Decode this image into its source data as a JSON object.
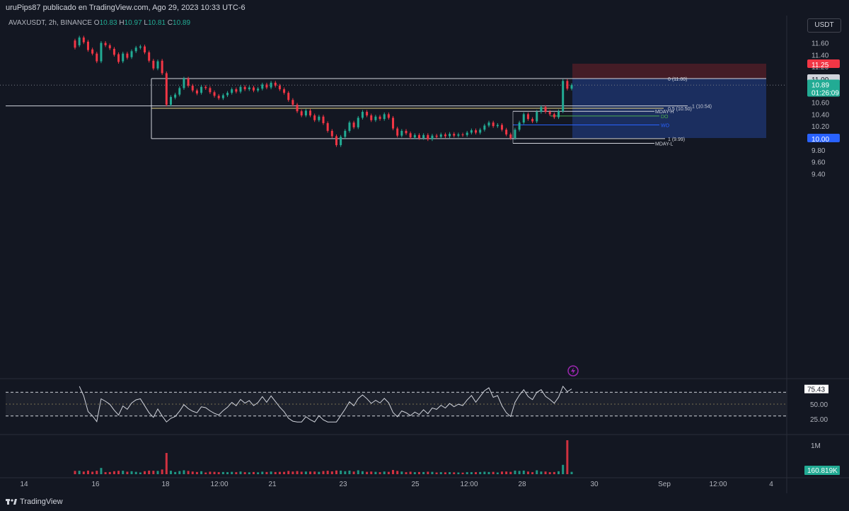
{
  "header": {
    "publisher": "uruPips87 publicado en TradingView.com, Ago 29, 2023 10:33 UTC-6"
  },
  "legend": {
    "symbol": "AVAXUSDT, 2h, BINANCE",
    "o_label": "O",
    "o": "10.83",
    "h_label": "H",
    "h": "10.97",
    "l_label": "L",
    "l": "10.81",
    "c_label": "C",
    "c": "10.89"
  },
  "currency_button": "USDT",
  "price_axis": {
    "ticks": [
      "11.60",
      "11.40",
      "11.20",
      "10.80",
      "10.60",
      "10.40",
      "10.20",
      "9.80",
      "9.60",
      "9.40"
    ]
  },
  "price_tags": {
    "stop": "11.25",
    "level": "11.00",
    "last": "10.89",
    "countdown": "01:26:09",
    "target": "10.00"
  },
  "fib_labels": {
    "f0": "0 (11.00)",
    "f1": "1 (10.54)",
    "f05": "0.5 (10.50)",
    "f1b": "1 (9.99)"
  },
  "level_labels": {
    "mdayh": "MDAY-H",
    "do": "DO",
    "wo": "WO",
    "mdayl": "MDAY-L"
  },
  "rsi": {
    "value": "75.43",
    "ticks": [
      "50.00",
      "25.00"
    ]
  },
  "volume": {
    "axis": "1M",
    "value": "160.819K"
  },
  "time_axis": [
    "14",
    "16",
    "18",
    "12:00",
    "21",
    "23",
    "25",
    "12:00",
    "28",
    "30",
    "Sep",
    "12:00",
    "4"
  ],
  "footer": {
    "brand": "TradingView"
  },
  "colors": {
    "up": "#22ab94",
    "down": "#f23645",
    "bg": "#131722",
    "short_target": "#1d3166",
    "short_stop": "#4a1d27"
  },
  "chart_data": {
    "type": "candlestick",
    "symbol": "AVAXUSDT",
    "interval": "2h",
    "ylim": [
      9.4,
      11.7
    ],
    "candles": [
      {
        "o": 11.64,
        "c": 11.52
      },
      {
        "o": 11.56,
        "c": 11.69
      },
      {
        "o": 11.69,
        "c": 11.61
      },
      {
        "o": 11.62,
        "c": 11.48
      },
      {
        "o": 11.49,
        "c": 11.42
      },
      {
        "o": 11.42,
        "c": 11.29
      },
      {
        "o": 11.29,
        "c": 11.6
      },
      {
        "o": 11.6,
        "c": 11.56
      },
      {
        "o": 11.56,
        "c": 11.51
      },
      {
        "o": 11.5,
        "c": 11.4
      },
      {
        "o": 11.41,
        "c": 11.28
      },
      {
        "o": 11.29,
        "c": 11.42
      },
      {
        "o": 11.42,
        "c": 11.35
      },
      {
        "o": 11.36,
        "c": 11.46
      },
      {
        "o": 11.46,
        "c": 11.52
      },
      {
        "o": 11.52,
        "c": 11.54
      },
      {
        "o": 11.54,
        "c": 11.44
      },
      {
        "o": 11.44,
        "c": 11.3
      },
      {
        "o": 11.3,
        "c": 11.17
      },
      {
        "o": 11.17,
        "c": 11.29
      },
      {
        "o": 11.3,
        "c": 11.09
      },
      {
        "o": 11.09,
        "c": 10.56
      },
      {
        "o": 10.56,
        "c": 10.69
      },
      {
        "o": 10.68,
        "c": 10.73
      },
      {
        "o": 10.73,
        "c": 10.84
      },
      {
        "o": 10.84,
        "c": 11.0
      },
      {
        "o": 11.0,
        "c": 10.88
      },
      {
        "o": 10.88,
        "c": 10.8
      },
      {
        "o": 10.8,
        "c": 10.75
      },
      {
        "o": 10.76,
        "c": 10.86
      },
      {
        "o": 10.86,
        "c": 10.84
      },
      {
        "o": 10.84,
        "c": 10.77
      },
      {
        "o": 10.77,
        "c": 10.71
      },
      {
        "o": 10.71,
        "c": 10.67
      },
      {
        "o": 10.67,
        "c": 10.72
      },
      {
        "o": 10.72,
        "c": 10.76
      },
      {
        "o": 10.76,
        "c": 10.82
      },
      {
        "o": 10.82,
        "c": 10.78
      },
      {
        "o": 10.78,
        "c": 10.86
      },
      {
        "o": 10.86,
        "c": 10.82
      },
      {
        "o": 10.82,
        "c": 10.85
      },
      {
        "o": 10.85,
        "c": 10.8
      },
      {
        "o": 10.8,
        "c": 10.83
      },
      {
        "o": 10.83,
        "c": 10.9
      },
      {
        "o": 10.9,
        "c": 10.85
      },
      {
        "o": 10.85,
        "c": 10.93
      },
      {
        "o": 10.93,
        "c": 10.88
      },
      {
        "o": 10.88,
        "c": 10.82
      },
      {
        "o": 10.82,
        "c": 10.76
      },
      {
        "o": 10.76,
        "c": 10.64
      },
      {
        "o": 10.64,
        "c": 10.56
      },
      {
        "o": 10.56,
        "c": 10.45
      },
      {
        "o": 10.45,
        "c": 10.38
      },
      {
        "o": 10.38,
        "c": 10.46
      },
      {
        "o": 10.46,
        "c": 10.38
      },
      {
        "o": 10.38,
        "c": 10.3
      },
      {
        "o": 10.3,
        "c": 10.36
      },
      {
        "o": 10.36,
        "c": 10.25
      },
      {
        "o": 10.25,
        "c": 10.12
      },
      {
        "o": 10.12,
        "c": 10.03
      },
      {
        "o": 10.03,
        "c": 9.88
      },
      {
        "o": 9.88,
        "c": 10.02
      },
      {
        "o": 10.02,
        "c": 10.12
      },
      {
        "o": 10.12,
        "c": 10.26
      },
      {
        "o": 10.26,
        "c": 10.18
      },
      {
        "o": 10.18,
        "c": 10.34
      },
      {
        "o": 10.34,
        "c": 10.44
      },
      {
        "o": 10.44,
        "c": 10.38
      },
      {
        "o": 10.38,
        "c": 10.3
      },
      {
        "o": 10.3,
        "c": 10.36
      },
      {
        "o": 10.36,
        "c": 10.32
      },
      {
        "o": 10.32,
        "c": 10.4
      },
      {
        "o": 10.4,
        "c": 10.34
      },
      {
        "o": 10.34,
        "c": 10.16
      },
      {
        "o": 10.16,
        "c": 10.04
      },
      {
        "o": 10.04,
        "c": 10.12
      },
      {
        "o": 10.12,
        "c": 10.08
      },
      {
        "o": 10.08,
        "c": 10.01
      },
      {
        "o": 10.01,
        "c": 10.05
      },
      {
        "o": 10.05,
        "c": 10.0
      },
      {
        "o": 10.0,
        "c": 10.05
      },
      {
        "o": 10.05,
        "c": 9.98
      },
      {
        "o": 9.98,
        "c": 10.04
      },
      {
        "o": 10.04,
        "c": 10.02
      },
      {
        "o": 10.02,
        "c": 10.06
      },
      {
        "o": 10.06,
        "c": 10.03
      },
      {
        "o": 10.03,
        "c": 10.07
      },
      {
        "o": 10.07,
        "c": 10.04
      },
      {
        "o": 10.04,
        "c": 10.06
      },
      {
        "o": 10.06,
        "c": 10.05
      },
      {
        "o": 10.05,
        "c": 10.09
      },
      {
        "o": 10.09,
        "c": 10.13
      },
      {
        "o": 10.13,
        "c": 10.09
      },
      {
        "o": 10.09,
        "c": 10.14
      },
      {
        "o": 10.14,
        "c": 10.21
      },
      {
        "o": 10.21,
        "c": 10.26
      },
      {
        "o": 10.26,
        "c": 10.2
      },
      {
        "o": 10.2,
        "c": 10.22
      },
      {
        "o": 10.22,
        "c": 10.14
      },
      {
        "o": 10.14,
        "c": 10.06
      },
      {
        "o": 10.06,
        "c": 10.0
      },
      {
        "o": 10.0,
        "c": 10.14
      },
      {
        "o": 10.14,
        "c": 10.26
      },
      {
        "o": 10.26,
        "c": 10.4
      },
      {
        "o": 10.4,
        "c": 10.32
      },
      {
        "o": 10.32,
        "c": 10.28
      },
      {
        "o": 10.28,
        "c": 10.44
      },
      {
        "o": 10.44,
        "c": 10.52
      },
      {
        "o": 10.52,
        "c": 10.44
      },
      {
        "o": 10.44,
        "c": 10.4
      },
      {
        "o": 10.4,
        "c": 10.35
      },
      {
        "o": 10.35,
        "c": 10.45
      },
      {
        "o": 10.45,
        "c": 10.96
      },
      {
        "o": 10.96,
        "c": 10.83
      },
      {
        "o": 10.83,
        "c": 10.89
      }
    ],
    "hlines": [
      {
        "label": "0 (11.00)",
        "price": 11.0
      },
      {
        "label": "1 (10.54)",
        "price": 10.54
      },
      {
        "label": "0.5 (10.50)",
        "price": 10.5
      },
      {
        "label": "MDAY-H",
        "price": 10.45
      },
      {
        "label": "DO",
        "price": 10.37
      },
      {
        "label": "WO",
        "price": 10.22
      },
      {
        "label": "1 (9.99)",
        "price": 9.99
      },
      {
        "label": "MDAY-L",
        "price": 9.91
      }
    ],
    "position": {
      "type": "short",
      "entry": 11.0,
      "stop": 11.25,
      "target": 10.0
    },
    "rsi": {
      "value": 75.43,
      "levels": [
        70,
        50,
        30
      ]
    },
    "volume_last": "160.819K"
  }
}
